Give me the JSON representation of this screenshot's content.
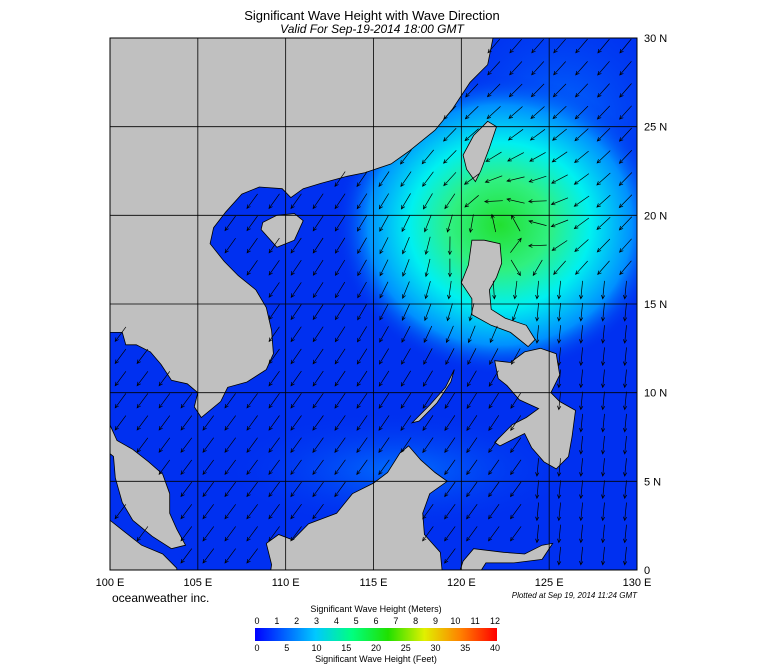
{
  "header": {
    "title": "Significant Wave Height with Wave Direction",
    "subtitle": "Valid For Sep-19-2014 18:00 GMT"
  },
  "map": {
    "longitude_labels": [
      "100 E",
      "105 E",
      "110 E",
      "115 E",
      "120 E",
      "125 E",
      "130 E"
    ],
    "latitude_labels": [
      "0",
      "5 N",
      "10 N",
      "15 N",
      "20 N",
      "25 N",
      "30 N"
    ]
  },
  "footer": {
    "credit": "oceanweather inc.",
    "plotted": "Plotted at Sep 19, 2014 11:24 GMT"
  },
  "colorbar": {
    "meters_title": "Significant Wave Height (Meters)",
    "meters_ticks": [
      0,
      1,
      2,
      3,
      4,
      5,
      6,
      7,
      8,
      9,
      10,
      11,
      12
    ],
    "feet_ticks": [
      0,
      5,
      10,
      15,
      20,
      25,
      30,
      35,
      40
    ],
    "feet_title": "Significant Wave Height (Feet)"
  }
}
